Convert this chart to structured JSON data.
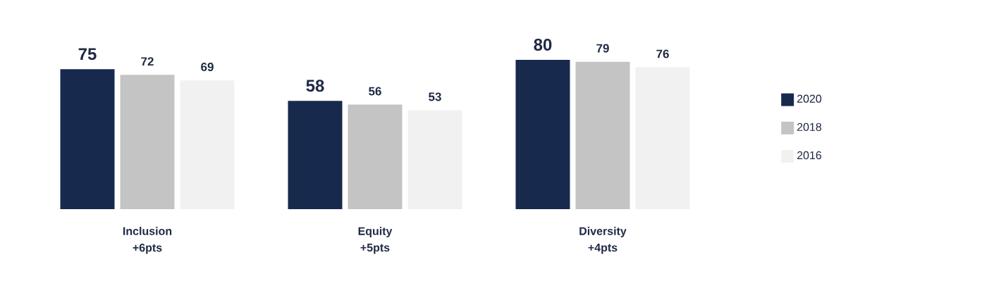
{
  "chart_data": {
    "type": "bar",
    "categories": [
      "Inclusion",
      "Equity",
      "Diversity"
    ],
    "series": [
      {
        "name": "2020",
        "color": "#172a4d",
        "values": [
          75,
          58,
          80
        ]
      },
      {
        "name": "2018",
        "color": "#c3c4c3",
        "values": [
          72,
          56,
          79
        ]
      },
      {
        "name": "2016",
        "color": "#f1f1f1",
        "values": [
          69,
          53,
          76
        ]
      }
    ],
    "data_labels": true,
    "legend": "right",
    "annotations": [
      "+6pts",
      "+5pts",
      "+4pts"
    ]
  }
}
